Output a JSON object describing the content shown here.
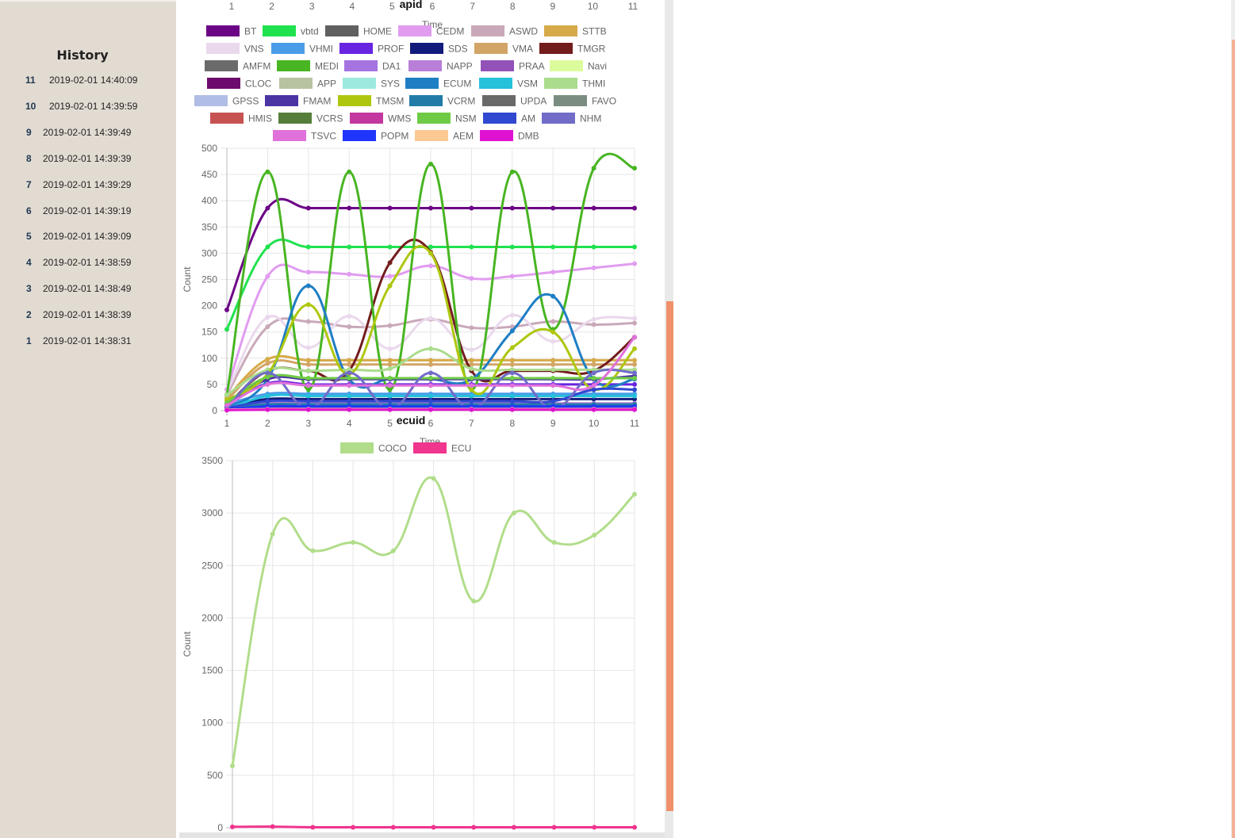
{
  "sidebar": {
    "title": "History",
    "entries": [
      {
        "num": "11",
        "time": "2019-02-01 14:40:09"
      },
      {
        "num": "10",
        "time": "2019-02-01 14:39:59"
      },
      {
        "num": "9",
        "time": "2019-02-01 14:39:49"
      },
      {
        "num": "8",
        "time": "2019-02-01 14:39:39"
      },
      {
        "num": "7",
        "time": "2019-02-01 14:39:29"
      },
      {
        "num": "6",
        "time": "2019-02-01 14:39:19"
      },
      {
        "num": "5",
        "time": "2019-02-01 14:39:09"
      },
      {
        "num": "4",
        "time": "2019-02-01 14:38:59"
      },
      {
        "num": "3",
        "time": "2019-02-01 14:38:49"
      },
      {
        "num": "2",
        "time": "2019-02-01 14:38:39"
      },
      {
        "num": "1",
        "time": "2019-02-01 14:38:31"
      }
    ]
  },
  "top_axis": {
    "ticks": [
      "1",
      "2",
      "3",
      "4",
      "5",
      "6",
      "7",
      "8",
      "9",
      "10",
      "11"
    ],
    "xlabel": "Time"
  },
  "chart_data": [
    {
      "type": "line",
      "title": "apid",
      "xlabel": "Time",
      "ylabel": "Count",
      "x": [
        1,
        2,
        3,
        4,
        5,
        6,
        7,
        8,
        9,
        10,
        11
      ],
      "ylim": [
        0,
        500
      ],
      "yticks": [
        0,
        50,
        100,
        150,
        200,
        250,
        300,
        350,
        400,
        450,
        500
      ],
      "grid": true,
      "legend_position": "top",
      "series": [
        {
          "name": "BT",
          "color": "#6c0486",
          "values": [
            192,
            386,
            386,
            386,
            386,
            386,
            386,
            386,
            386,
            386,
            386
          ]
        },
        {
          "name": "vbtd",
          "color": "#1fe24e",
          "values": [
            155,
            312,
            312,
            312,
            312,
            312,
            312,
            312,
            312,
            312,
            312
          ]
        },
        {
          "name": "HOME",
          "color": "#606060",
          "values": [
            5,
            8,
            10,
            10,
            10,
            10,
            10,
            10,
            10,
            10,
            10
          ]
        },
        {
          "name": "CEDM",
          "color": "#e19cf0",
          "values": [
            40,
            256,
            264,
            260,
            256,
            276,
            252,
            256,
            264,
            272,
            280
          ]
        },
        {
          "name": "ASWD",
          "color": "#c9a9b9",
          "values": [
            30,
            160,
            170,
            160,
            162,
            174,
            158,
            160,
            170,
            164,
            167
          ]
        },
        {
          "name": "STTB",
          "color": "#d6aa49",
          "values": [
            25,
            98,
            96,
            96,
            96,
            96,
            96,
            96,
            96,
            96,
            96
          ]
        },
        {
          "name": "VNS",
          "color": "#ead8ec",
          "values": [
            35,
            178,
            120,
            180,
            118,
            176,
            116,
            182,
            132,
            174,
            176
          ]
        },
        {
          "name": "VHMI",
          "color": "#4b9ce8",
          "values": [
            12,
            32,
            32,
            32,
            32,
            32,
            32,
            32,
            32,
            32,
            32
          ]
        },
        {
          "name": "PROF",
          "color": "#6824e0",
          "values": [
            10,
            52,
            50,
            50,
            50,
            50,
            50,
            50,
            50,
            50,
            50
          ]
        },
        {
          "name": "SDS",
          "color": "#121b7c",
          "values": [
            8,
            22,
            22,
            22,
            22,
            22,
            22,
            22,
            22,
            22,
            22
          ]
        },
        {
          "name": "VMA",
          "color": "#d2a566",
          "values": [
            20,
            90,
            88,
            88,
            88,
            88,
            88,
            88,
            88,
            88,
            88
          ]
        },
        {
          "name": "TMGR",
          "color": "#731c1c",
          "values": [
            10,
            76,
            76,
            76,
            282,
            302,
            76,
            76,
            76,
            76,
            140
          ]
        },
        {
          "name": "AMFM",
          "color": "#6b6b6b",
          "values": [
            4,
            6,
            6,
            6,
            6,
            6,
            6,
            6,
            6,
            6,
            6
          ]
        },
        {
          "name": "MEDI",
          "color": "#48b522",
          "values": [
            30,
            455,
            40,
            455,
            40,
            470,
            40,
            455,
            155,
            462,
            462
          ]
        },
        {
          "name": "DA1",
          "color": "#a574e0",
          "values": [
            5,
            12,
            12,
            12,
            12,
            12,
            12,
            12,
            12,
            12,
            12
          ]
        },
        {
          "name": "NAPP",
          "color": "#b97ed8",
          "values": [
            6,
            14,
            14,
            14,
            14,
            14,
            14,
            14,
            14,
            14,
            14
          ]
        },
        {
          "name": "PRAA",
          "color": "#9352b8",
          "values": [
            5,
            10,
            10,
            10,
            10,
            10,
            10,
            10,
            10,
            10,
            10
          ]
        },
        {
          "name": "Navi",
          "color": "#dcfb9c",
          "values": [
            4,
            8,
            8,
            8,
            8,
            8,
            8,
            8,
            8,
            8,
            8
          ]
        },
        {
          "name": "CLOC",
          "color": "#6c0d6e",
          "values": [
            2,
            4,
            4,
            4,
            4,
            4,
            4,
            4,
            4,
            4,
            4
          ]
        },
        {
          "name": "APP",
          "color": "#b7c3a1",
          "values": [
            3,
            6,
            6,
            6,
            6,
            6,
            6,
            6,
            6,
            6,
            6
          ]
        },
        {
          "name": "SYS",
          "color": "#9ee9df",
          "values": [
            2,
            5,
            5,
            5,
            5,
            5,
            5,
            5,
            5,
            5,
            5
          ]
        },
        {
          "name": "ECUM",
          "color": "#1f7ec4",
          "values": [
            5,
            60,
            238,
            60,
            60,
            60,
            60,
            152,
            218,
            60,
            60
          ]
        },
        {
          "name": "VSM",
          "color": "#25c1db",
          "values": [
            3,
            28,
            28,
            28,
            28,
            28,
            28,
            28,
            28,
            28,
            28
          ]
        },
        {
          "name": "THMI",
          "color": "#aadc8c",
          "values": [
            30,
            78,
            76,
            78,
            80,
            118,
            80,
            78,
            78,
            78,
            78
          ]
        },
        {
          "name": "GPSS",
          "color": "#b0bde5",
          "values": [
            2,
            4,
            4,
            4,
            4,
            4,
            4,
            4,
            4,
            4,
            4
          ]
        },
        {
          "name": "FMAM",
          "color": "#4b33a4",
          "values": [
            8,
            60,
            60,
            60,
            60,
            60,
            60,
            60,
            60,
            60,
            66
          ]
        },
        {
          "name": "TMSM",
          "color": "#aec70e",
          "values": [
            20,
            70,
            202,
            70,
            238,
            300,
            40,
            120,
            150,
            40,
            118
          ]
        },
        {
          "name": "VCRM",
          "color": "#227ba6",
          "values": [
            4,
            12,
            12,
            12,
            12,
            12,
            12,
            12,
            12,
            12,
            12
          ]
        },
        {
          "name": "UPDA",
          "color": "#696969",
          "values": [
            2,
            3,
            3,
            3,
            3,
            3,
            3,
            3,
            3,
            3,
            3
          ]
        },
        {
          "name": "FAVO",
          "color": "#7a8d80",
          "values": [
            3,
            6,
            6,
            6,
            6,
            6,
            6,
            6,
            6,
            6,
            6
          ]
        },
        {
          "name": "HMIS",
          "color": "#c65352",
          "values": [
            2,
            4,
            4,
            4,
            4,
            4,
            4,
            4,
            4,
            4,
            4
          ]
        },
        {
          "name": "VCRS",
          "color": "#567e3b",
          "values": [
            2,
            5,
            5,
            5,
            5,
            5,
            5,
            5,
            5,
            5,
            5
          ]
        },
        {
          "name": "WMS",
          "color": "#c2389e",
          "values": [
            2,
            4,
            4,
            4,
            4,
            4,
            4,
            4,
            4,
            4,
            4
          ]
        },
        {
          "name": "NSM",
          "color": "#6fcb45",
          "values": [
            15,
            64,
            62,
            62,
            62,
            62,
            62,
            62,
            62,
            62,
            62
          ]
        },
        {
          "name": "AM",
          "color": "#3148d0",
          "values": [
            5,
            18,
            18,
            18,
            18,
            18,
            18,
            18,
            18,
            40,
            40
          ]
        },
        {
          "name": "NHM",
          "color": "#716cc8",
          "values": [
            4,
            72,
            4,
            72,
            4,
            72,
            4,
            72,
            4,
            72,
            72
          ]
        },
        {
          "name": "TSVC",
          "color": "#e071db",
          "values": [
            10,
            50,
            48,
            48,
            48,
            48,
            48,
            48,
            48,
            48,
            140
          ]
        },
        {
          "name": "POPM",
          "color": "#1f35fb",
          "values": [
            3,
            8,
            8,
            8,
            8,
            8,
            8,
            8,
            8,
            8,
            8
          ]
        },
        {
          "name": "AEM",
          "color": "#fcc993",
          "values": [
            2,
            3,
            3,
            3,
            3,
            3,
            3,
            3,
            3,
            3,
            3
          ]
        },
        {
          "name": "DMB",
          "color": "#e012d2",
          "values": [
            1,
            2,
            2,
            2,
            2,
            2,
            2,
            2,
            2,
            2,
            2
          ]
        }
      ]
    },
    {
      "type": "line",
      "title": "ecuid",
      "xlabel": "Time",
      "ylabel": "Count",
      "x": [
        1,
        2,
        3,
        4,
        5,
        6,
        7,
        8,
        9,
        10,
        11
      ],
      "ylim": [
        0,
        3500
      ],
      "yticks": [
        0,
        500,
        1000,
        1500,
        2000,
        2500,
        3000,
        3500
      ],
      "grid": true,
      "legend_position": "top",
      "series": [
        {
          "name": "COCO",
          "color": "#b1dd8a",
          "values": [
            590,
            2800,
            2640,
            2720,
            2640,
            3330,
            2160,
            3000,
            2720,
            2790,
            3180
          ]
        },
        {
          "name": "ECU",
          "color": "#f0358e",
          "values": [
            8,
            10,
            4,
            4,
            4,
            4,
            4,
            4,
            4,
            4,
            4
          ]
        }
      ]
    }
  ]
}
